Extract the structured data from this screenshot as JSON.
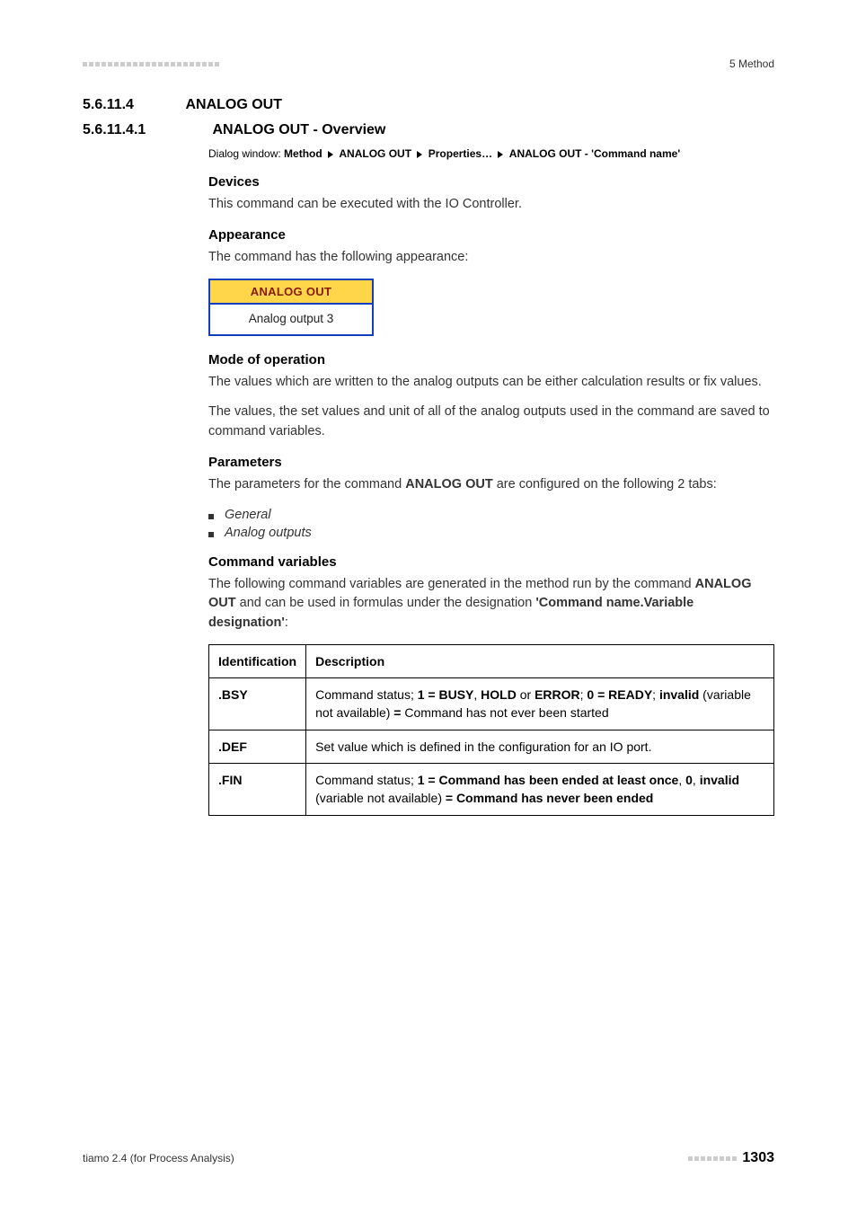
{
  "header": {
    "right": "5 Method"
  },
  "sec1": {
    "num": "5.6.11.4",
    "title": "ANALOG OUT"
  },
  "sec2": {
    "num": "5.6.11.4.1",
    "title": "ANALOG OUT - Overview"
  },
  "dialog": {
    "prefix": "Dialog window: ",
    "p1": "Method",
    "p2": "ANALOG OUT",
    "p3": "Properties…",
    "p4": "ANALOG OUT - 'Command name'"
  },
  "devices": {
    "head": "Devices",
    "text": "This command can be executed with the IO Controller."
  },
  "appearance": {
    "head": "Appearance",
    "text": "The command has the following appearance:",
    "box_top": "ANALOG OUT",
    "box_bot": "Analog output 3"
  },
  "mode": {
    "head": "Mode of operation",
    "p1": "The values which are written to the analog outputs can be either calculation results or fix values.",
    "p2": "The values, the set values and unit of all of the analog outputs used in the command are saved to command variables."
  },
  "params": {
    "head": "Parameters",
    "intro_a": "The parameters for the command ",
    "intro_b": "ANALOG OUT",
    "intro_c": " are configured on the following 2 tabs:",
    "items": [
      "General",
      "Analog outputs"
    ]
  },
  "cmdvars": {
    "head": "Command variables",
    "intro_a": "The following command variables are generated in the method run by the command ",
    "intro_b": "ANALOG OUT",
    "intro_c": " and can be used in formulas under the designation ",
    "intro_d": "'Command name.Variable designation'",
    "intro_e": ":",
    "th1": "Identification",
    "th2": "Description",
    "rows": [
      {
        "id": ".BSY",
        "d_pre": "Command status; ",
        "d_b1": "1 = BUSY",
        "d_s1": ", ",
        "d_b2": "HOLD",
        "d_s2": " or ",
        "d_b3": "ERROR",
        "d_s3": "; ",
        "d_b4": "0 = READY",
        "d_s4": "; ",
        "d_b5": "invalid",
        "d_s5": " (variable not available) ",
        "d_b6": "=",
        "d_s6": " Command has not ever been started"
      },
      {
        "id": ".DEF",
        "desc": "Set value which is defined in the configuration for an IO port."
      },
      {
        "id": ".FIN",
        "d_pre": "Command status; ",
        "d_b1": "1 = Command has been ended at least once",
        "d_s1": ", ",
        "d_b2": "0",
        "d_s2": ", ",
        "d_b3": "invalid",
        "d_s3": " (variable not available) ",
        "d_b4": "= Command has never been ended"
      }
    ]
  },
  "footer": {
    "left": "tiamo 2.4 (for Process Analysis)",
    "page": "1303"
  },
  "colors": {
    "box_border": "#1040c0",
    "box_top_bg": "#ffd54a",
    "box_top_fg": "#8a1a00"
  }
}
